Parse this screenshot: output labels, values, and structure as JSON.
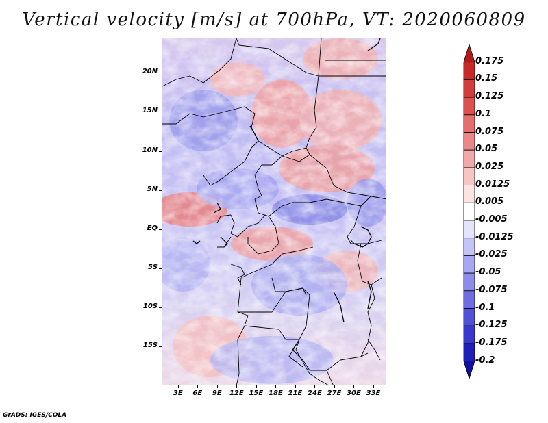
{
  "title": "Vertical velocity [m/s] at 700hPa, VT: 2020060809",
  "footer": "GrADS: IGES/COLA",
  "map": {
    "variable": "Vertical velocity",
    "units": "m/s",
    "level": "700hPa",
    "valid_time": "2020060809",
    "lat_labels": [
      "20N",
      "15N",
      "10N",
      "5N",
      "EQ",
      "5S",
      "10S",
      "15S"
    ],
    "lat_values": [
      20,
      15,
      10,
      5,
      0,
      -5,
      -10,
      -15
    ],
    "lon_labels": [
      "3E",
      "6E",
      "9E",
      "12E",
      "15E",
      "18E",
      "21E",
      "24E",
      "27E",
      "30E",
      "33E"
    ],
    "lon_values": [
      3,
      6,
      9,
      12,
      15,
      18,
      21,
      24,
      27,
      30,
      33
    ],
    "lon_range": [
      0.5,
      35
    ],
    "lat_range": [
      -20,
      24.5
    ]
  },
  "colorbar": {
    "labels": [
      "0.175",
      "0.15",
      "0.125",
      "0.1",
      "0.075",
      "0.05",
      "0.025",
      "0.0125",
      "0.005",
      "-0.005",
      "-0.0125",
      "-0.025",
      "-0.05",
      "-0.075",
      "-0.1",
      "-0.125",
      "-0.175",
      "-0.2"
    ],
    "colors": [
      "#b41a1a",
      "#c82828",
      "#d23c3c",
      "#dc5050",
      "#e46e6e",
      "#ea8888",
      "#f0a8a8",
      "#f6c6c6",
      "#fce4e4",
      "#ffffff",
      "#e4e4fc",
      "#c4c4f8",
      "#a8a8f2",
      "#8c8cea",
      "#6e6ee2",
      "#5050d8",
      "#3838cc",
      "#2020b8",
      "#1010a0"
    ]
  }
}
